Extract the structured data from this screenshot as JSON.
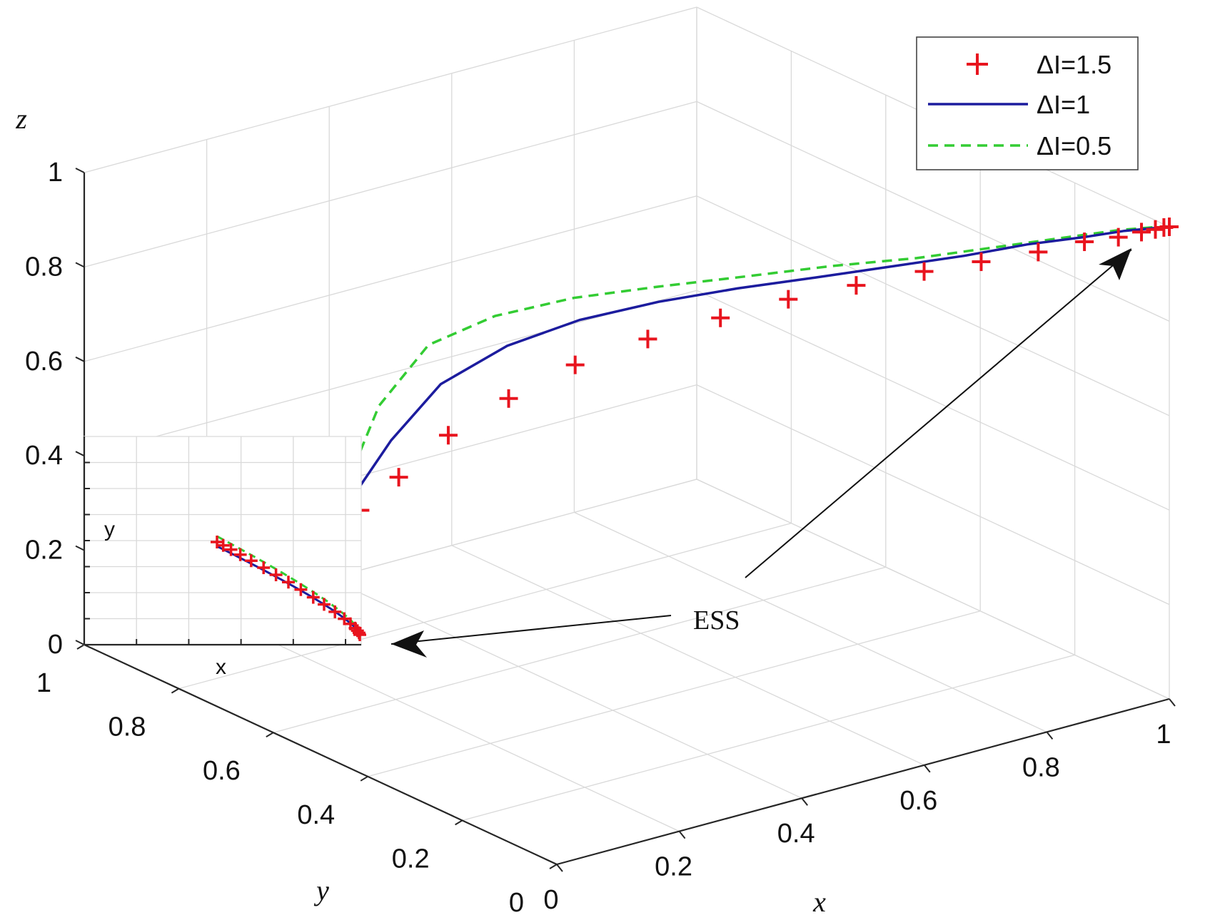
{
  "chart_data": {
    "type": "line",
    "projection": "3d",
    "axes": {
      "x": {
        "label": "x",
        "lim": [
          0,
          1
        ],
        "ticks": [
          "0",
          "0.2",
          "0.4",
          "0.6",
          "0.8",
          "1"
        ]
      },
      "y": {
        "label": "y",
        "lim": [
          0,
          1
        ],
        "ticks": [
          "0",
          "0.2",
          "0.4",
          "0.6",
          "0.8",
          "1"
        ]
      },
      "z": {
        "label": "z",
        "lim": [
          0,
          1
        ],
        "ticks": [
          "0",
          "0.2",
          "0.4",
          "0.6",
          "0.8",
          "1"
        ]
      }
    },
    "grid": true,
    "legend_position": "top-right",
    "series": [
      {
        "name": "ΔI=1.5",
        "style": "plus-markers",
        "color": "#e8141e",
        "x": [
          0.08,
          0.12,
          0.17,
          0.23,
          0.3,
          0.38,
          0.46,
          0.54,
          0.62,
          0.7,
          0.77,
          0.84,
          0.9,
          0.94,
          0.97,
          0.985,
          0.995,
          1.0
        ],
        "y": [
          0.52,
          0.49,
          0.45,
          0.4,
          0.35,
          0.3,
          0.25,
          0.21,
          0.17,
          0.13,
          0.1,
          0.07,
          0.05,
          0.03,
          0.02,
          0.01,
          0.005,
          0.0
        ],
        "z": [
          0.48,
          0.55,
          0.64,
          0.72,
          0.79,
          0.84,
          0.88,
          0.91,
          0.93,
          0.95,
          0.96,
          0.97,
          0.98,
          0.985,
          0.99,
          0.995,
          0.998,
          1.0
        ]
      },
      {
        "name": "ΔI=1",
        "style": "solid",
        "color": "#1c1c9e",
        "x": [
          0.06,
          0.1,
          0.15,
          0.22,
          0.3,
          0.39,
          0.48,
          0.57,
          0.66,
          0.75,
          0.83,
          0.9,
          0.95,
          0.985,
          1.0
        ],
        "y": [
          0.52,
          0.48,
          0.44,
          0.39,
          0.34,
          0.29,
          0.24,
          0.19,
          0.15,
          0.11,
          0.08,
          0.05,
          0.03,
          0.01,
          0.0
        ],
        "z": [
          0.5,
          0.64,
          0.76,
          0.84,
          0.89,
          0.92,
          0.94,
          0.955,
          0.965,
          0.975,
          0.985,
          0.99,
          0.995,
          0.998,
          1.0
        ]
      },
      {
        "name": "ΔI=0.5",
        "style": "dashed",
        "color": "#33cc33",
        "x": [
          0.05,
          0.08,
          0.13,
          0.2,
          0.29,
          0.38,
          0.48,
          0.58,
          0.68,
          0.78,
          0.87,
          0.94,
          0.985,
          1.0
        ],
        "y": [
          0.52,
          0.48,
          0.44,
          0.39,
          0.34,
          0.28,
          0.22,
          0.17,
          0.12,
          0.08,
          0.05,
          0.03,
          0.01,
          0.0
        ],
        "z": [
          0.52,
          0.72,
          0.85,
          0.91,
          0.94,
          0.96,
          0.975,
          0.985,
          0.99,
          0.997,
          1.0,
          1.0,
          1.0,
          1.0
        ]
      }
    ],
    "annotations": [
      {
        "text": "ESS"
      }
    ],
    "inset": {
      "xlabel": "x",
      "ylabel": "y"
    }
  }
}
